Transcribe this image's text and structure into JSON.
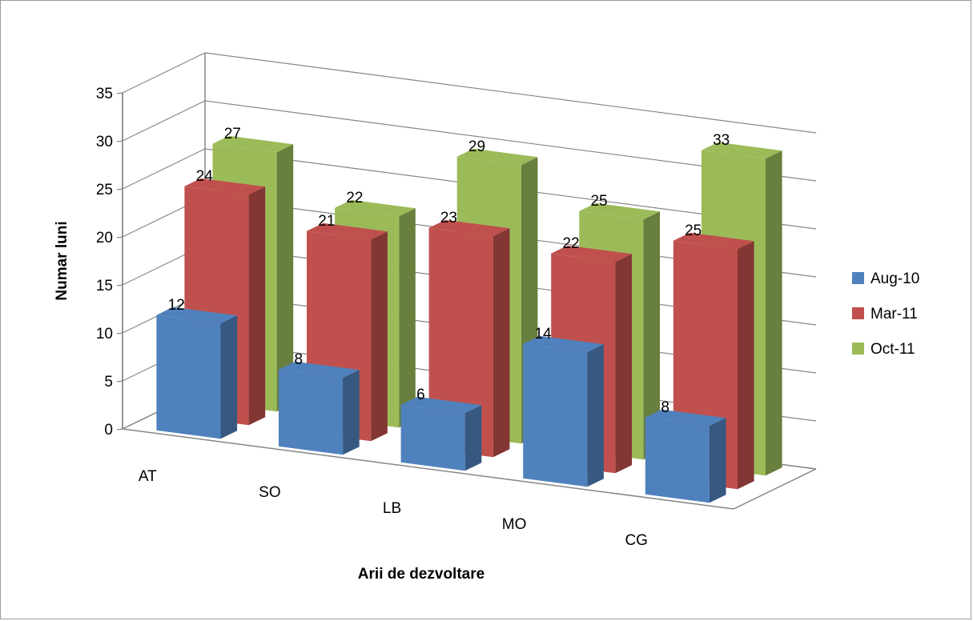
{
  "chart_data": {
    "type": "bar",
    "style": "3d-clustered-column",
    "title": "",
    "xlabel": "Arii de dezvoltare",
    "ylabel": "Numar luni",
    "ylim": [
      0,
      35
    ],
    "yticks": [
      0,
      5,
      10,
      15,
      20,
      25,
      30,
      35
    ],
    "grid": true,
    "legend_position": "right",
    "categories": [
      "AT",
      "SO",
      "LB",
      "MO",
      "CG"
    ],
    "series": [
      {
        "name": "Aug-10",
        "values": [
          12,
          8,
          6,
          14,
          8
        ],
        "color": "#4f81bd"
      },
      {
        "name": "Mar-11",
        "values": [
          24,
          21,
          23,
          22,
          25
        ],
        "color": "#c0504d"
      },
      {
        "name": "Oct-11",
        "values": [
          27,
          22,
          29,
          25,
          33
        ],
        "color": "#9bbb59"
      }
    ]
  }
}
